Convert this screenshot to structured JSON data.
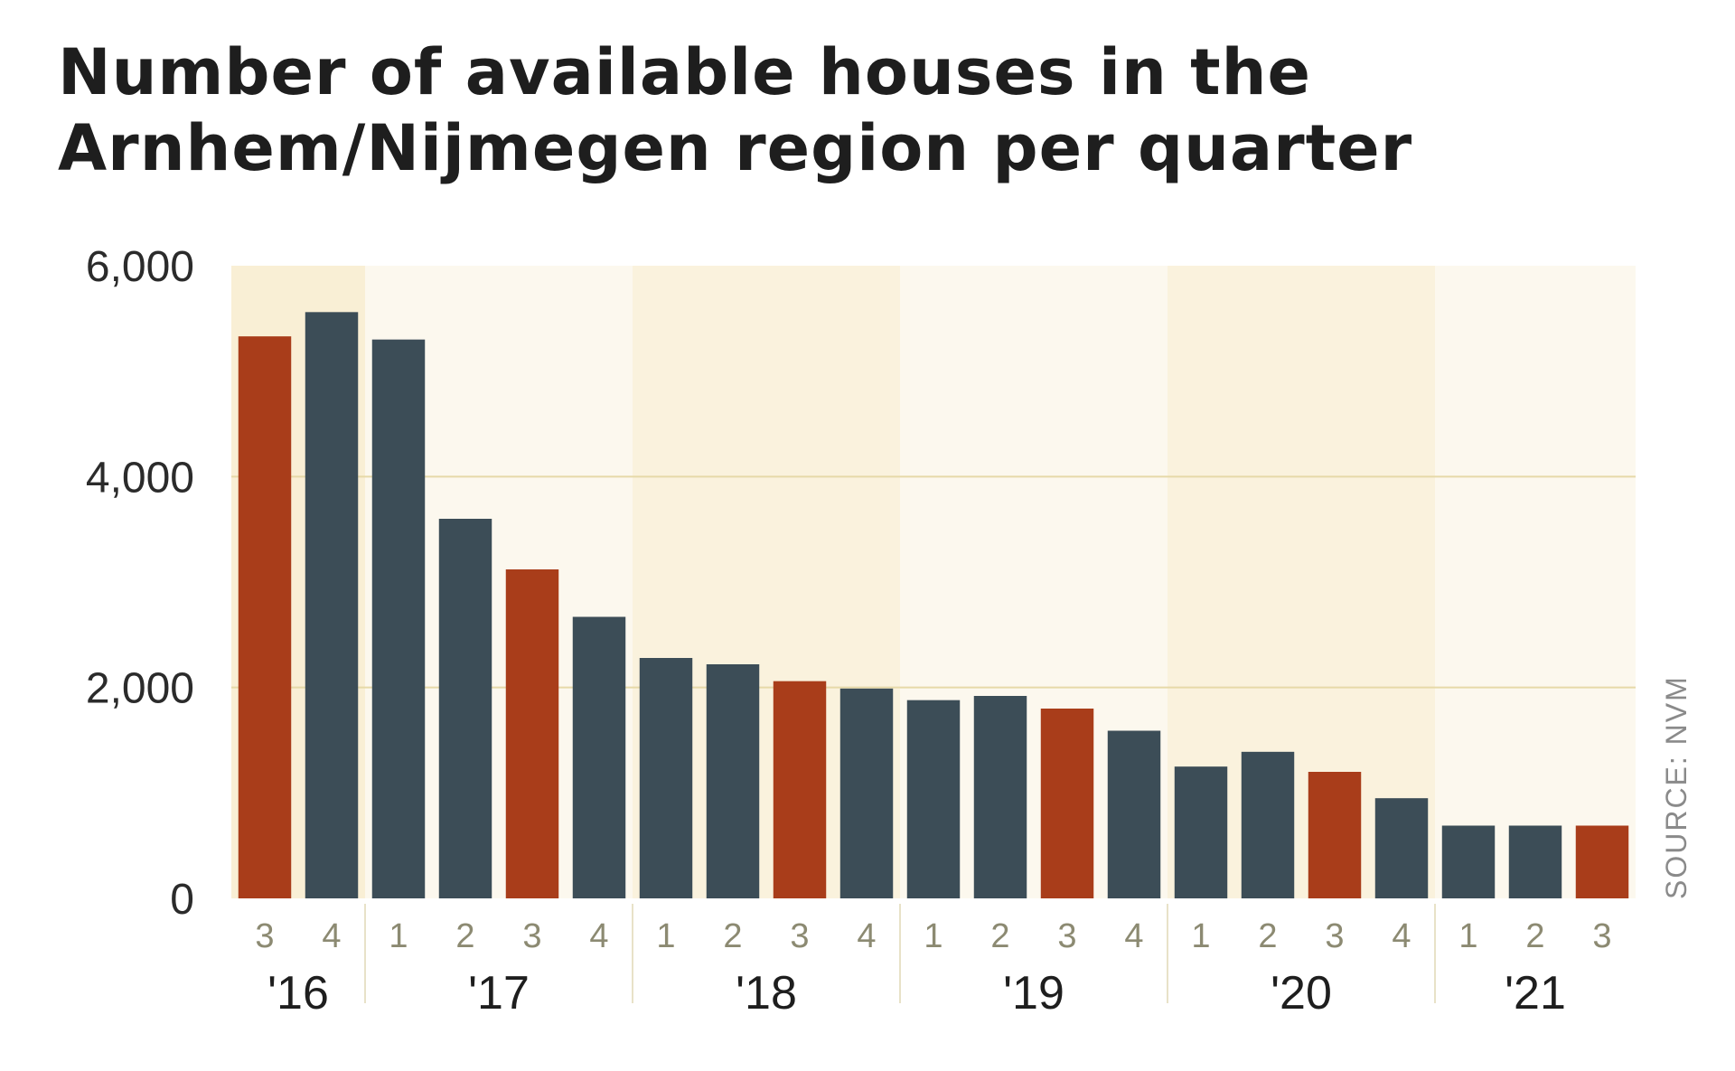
{
  "title_lines": [
    "Number of available houses in the",
    "Arnhem/Nijmegen region per quarter"
  ],
  "source": "SOURCE: NVM",
  "colors": {
    "highlight": "#a93d1a",
    "base": "#3c4d57",
    "band_light": "#fcf8ee",
    "band_dark": "#faf2dd",
    "band_first": "#f9efd5",
    "grid": "#e6d9a8",
    "quarter_label": "#8c8a72"
  },
  "chart_data": {
    "type": "bar",
    "title": "Number of available houses in the Arnhem/Nijmegen region per quarter",
    "ylim": [
      0,
      6000
    ],
    "yticks": [
      0,
      2000,
      4000,
      6000
    ],
    "ytick_labels": [
      "0",
      "2,000",
      "4,000",
      "6,000"
    ],
    "grid": true,
    "years": [
      {
        "label": "'16",
        "quarters": [
          "3",
          "4"
        ]
      },
      {
        "label": "'17",
        "quarters": [
          "1",
          "2",
          "3",
          "4"
        ]
      },
      {
        "label": "'18",
        "quarters": [
          "1",
          "2",
          "3",
          "4"
        ]
      },
      {
        "label": "'19",
        "quarters": [
          "1",
          "2",
          "3",
          "4"
        ]
      },
      {
        "label": "'20",
        "quarters": [
          "1",
          "2",
          "3",
          "4"
        ]
      },
      {
        "label": "'21",
        "quarters": [
          "1",
          "2",
          "3"
        ]
      }
    ],
    "values": [
      5330,
      5560,
      5300,
      3600,
      3120,
      2670,
      2280,
      2220,
      2060,
      1990,
      1880,
      1920,
      1800,
      1590,
      1250,
      1390,
      1200,
      950,
      690,
      690,
      690
    ],
    "highlighted": [
      true,
      false,
      false,
      false,
      true,
      false,
      false,
      false,
      true,
      false,
      false,
      false,
      true,
      false,
      false,
      false,
      true,
      false,
      false,
      false,
      true
    ]
  }
}
